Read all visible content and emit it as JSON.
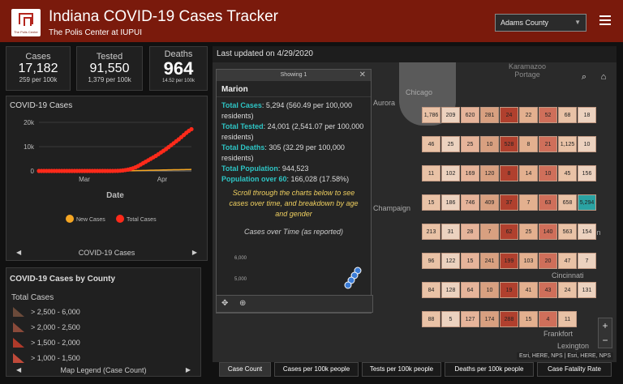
{
  "header": {
    "logo_text": "The Polis Center",
    "title": "Indiana COVID-19 Cases Tracker",
    "subtitle": "The Polis Center at IUPUI",
    "county_select": "Adams County"
  },
  "stats": {
    "cases": {
      "label": "Cases",
      "value": "17,182",
      "sub": "259 per 100k"
    },
    "tested": {
      "label": "Tested",
      "value": "91,550",
      "sub": "1,379 per 100k"
    },
    "deaths": {
      "label": "Deaths",
      "value": "964",
      "sub": "14.52 per 100k"
    }
  },
  "chart_panel": {
    "title": "COVID-19 Cases",
    "pager_label": "COVID-19 Cases"
  },
  "chart_data": {
    "type": "line",
    "xlabel": "Date",
    "ylabel": "",
    "x_ticks": [
      "Mar",
      "Apr"
    ],
    "y_ticks": [
      "0",
      "10k",
      "20k"
    ],
    "ylim": [
      0,
      20000
    ],
    "legend_placement": "bottom",
    "series": [
      {
        "name": "New Cases",
        "color": "#f5a623",
        "values": [
          0,
          0,
          0,
          0,
          0,
          0,
          0,
          0,
          0,
          0,
          0,
          0,
          0,
          0,
          0,
          0,
          0,
          0,
          0,
          0,
          0,
          0,
          0,
          0,
          0,
          0,
          0,
          0,
          0,
          0,
          5,
          10,
          20,
          30,
          40,
          60,
          80,
          100,
          120,
          150,
          180,
          200,
          220,
          250,
          280,
          300,
          320,
          350,
          380,
          400,
          420,
          450,
          470,
          480,
          500,
          520,
          540,
          560,
          580,
          600,
          610
        ]
      },
      {
        "name": "Total Cases",
        "color": "#ff2a1a",
        "values": [
          0,
          0,
          0,
          0,
          0,
          0,
          0,
          0,
          0,
          0,
          0,
          0,
          0,
          0,
          0,
          0,
          0,
          0,
          0,
          0,
          0,
          0,
          0,
          0,
          0,
          0,
          0,
          0,
          0,
          0,
          20,
          50,
          100,
          200,
          350,
          550,
          800,
          1100,
          1500,
          2000,
          2600,
          3200,
          3800,
          4400,
          5000,
          5600,
          6200,
          6900,
          7600,
          8300,
          9000,
          9800,
          10600,
          11400,
          12200,
          13000,
          13900,
          14800,
          15700,
          16500,
          17182
        ]
      }
    ]
  },
  "legend_panel": {
    "title": "COVID-19 Cases by County",
    "subtitle": "Total Cases",
    "items": [
      {
        "label": "> 2,500 - 6,000",
        "color": "#6b4a3a"
      },
      {
        "label": "> 2,000 - 2,500",
        "color": "#8a4a3a"
      },
      {
        "label": "> 1,500 - 2,000",
        "color": "#b03a2a"
      },
      {
        "label": "> 1,000 - 1,500",
        "color": "#c04a3a"
      }
    ],
    "pager_label": "Map Legend (Case Count)"
  },
  "map": {
    "updated": "Last updated on 4/29/2020",
    "lake_label": "Karamazoo Portage",
    "cities": [
      "Chicago",
      "Aurora",
      "Champaign",
      "Dayton",
      "Cincinnati",
      "Frankfort",
      "Lexington"
    ],
    "attribution": "Esri, HERE, NPS | Esri, HERE, NPS",
    "county_values": [
      "1,786",
      "209",
      "620",
      "281",
      "24",
      "22",
      "52",
      "68",
      "18",
      "46",
      "25",
      "25",
      "10",
      "528",
      "8",
      "21",
      "1,125",
      "10",
      "11",
      "102",
      "169",
      "120",
      "8",
      "14",
      "10",
      "45",
      "156",
      "15",
      "186",
      "746",
      "409",
      "37",
      "7",
      "63",
      "658",
      "5,294",
      "213",
      "31",
      "28",
      "7",
      "62",
      "25",
      "140",
      "563",
      "154",
      "96",
      "122",
      "15",
      "241",
      "199",
      "103",
      "20",
      "47",
      "7",
      "84",
      "128",
      "64",
      "10",
      "19",
      "41",
      "43",
      "24",
      "131",
      "88",
      "5",
      "127",
      "174",
      "288",
      "15",
      "4",
      "11"
    ]
  },
  "popup": {
    "header": "Showing 1",
    "county": "Marion",
    "lines": [
      {
        "k": "Total Cases",
        "v": ": 5,294 (560.49 per 100,000 residents)"
      },
      {
        "k": "Total Tested",
        "v": ": 24,001 (2,541.07 per 100,000 residents)"
      },
      {
        "k": "Total Deaths",
        "v": ": 305 (32.29 per 100,000 residents)"
      },
      {
        "k": "Total Population",
        "v": ": 944,523"
      },
      {
        "k": "Population over 60",
        "v": ": 166,028 (17.58%)"
      }
    ],
    "note": "Scroll through the charts below to see cases over time, and breakdown by age and gender",
    "chart_title": "Cases over Time (as reported)",
    "chart_ticks": [
      "6,000",
      "5,000"
    ]
  },
  "tabs": [
    "Case Count",
    "Cases per 100k people",
    "Tests per 100k people",
    "Deaths per 100k people",
    "Case Fatality Rate"
  ]
}
